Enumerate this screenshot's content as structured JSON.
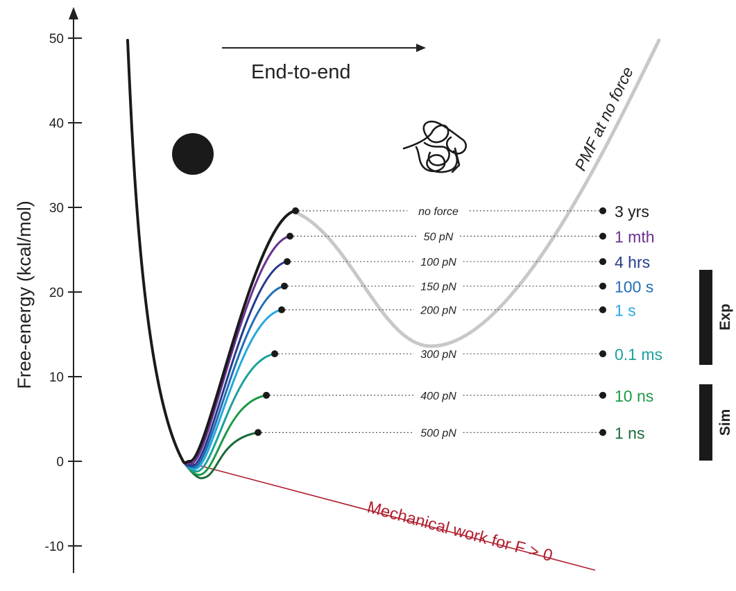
{
  "y_axis": {
    "title": "Free-energy (kcal/mol)",
    "ticks": [
      50,
      40,
      30,
      20,
      10,
      0,
      -10
    ]
  },
  "direction_label": "End-to-end",
  "pmf_label": "PMF at no force",
  "work_label": "Mechanical work for F > 0",
  "side_bars": [
    {
      "label": "Exp"
    },
    {
      "label": "Sim"
    }
  ],
  "forces": [
    {
      "force": "no force",
      "barrier": 29.6,
      "time": "3 yrs",
      "color": "#1a1a1a"
    },
    {
      "force": "50 pN",
      "barrier": 26.6,
      "time": "1 mth",
      "color": "#6a2f8f"
    },
    {
      "force": "100 pN",
      "barrier": 23.6,
      "time": "4 hrs",
      "color": "#243a8a"
    },
    {
      "force": "150 pN",
      "barrier": 20.7,
      "time": "100 s",
      "color": "#1f6fb5"
    },
    {
      "force": "200 pN",
      "barrier": 17.9,
      "time": "1 s",
      "color": "#27a8de"
    },
    {
      "force": "300 pN",
      "barrier": 12.7,
      "time": "0.1 ms",
      "color": "#1ba19a"
    },
    {
      "force": "400 pN",
      "barrier": 7.8,
      "time": "10 ns",
      "color": "#1e9948"
    },
    {
      "force": "500 pN",
      "barrier": 3.4,
      "time": "1 ns",
      "color": "#1a6b3a"
    }
  ],
  "colors": {
    "pmf": "#c8c8c8",
    "work": "#b01e2e",
    "axis": "#222222"
  }
}
